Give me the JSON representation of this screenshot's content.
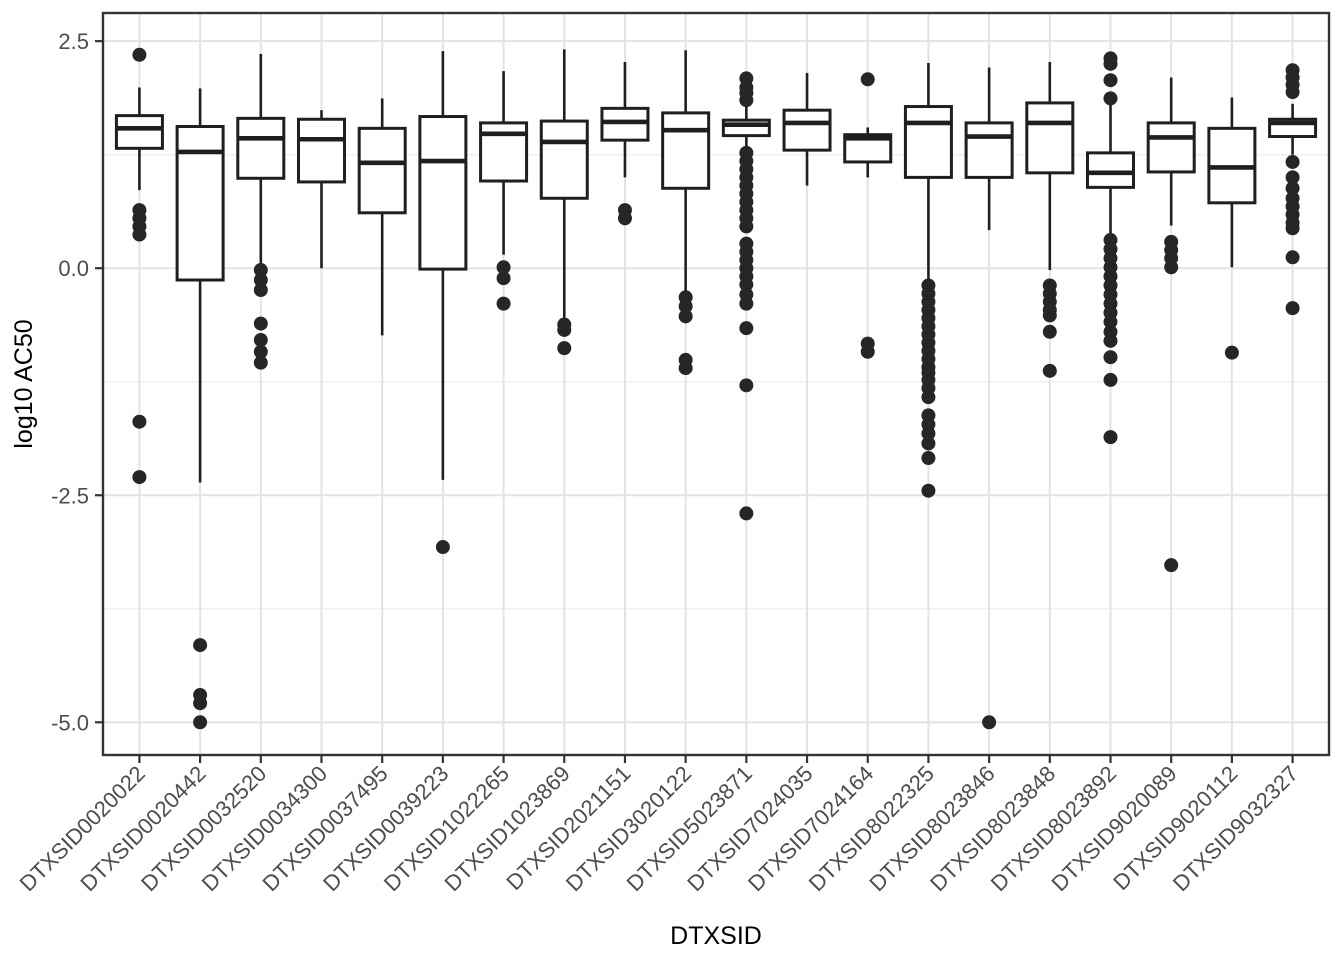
{
  "chart_data": {
    "type": "boxplot",
    "title": "",
    "xlabel": "DTXSID",
    "ylabel": "log10 AC50",
    "ylim": [
      -5.36,
      2.81
    ],
    "grid": true,
    "legend": "none",
    "y_ticks": [
      {
        "value": 2.5,
        "label": "2.5"
      },
      {
        "value": 0.0,
        "label": "0.0"
      },
      {
        "value": -2.5,
        "label": "-2.5"
      },
      {
        "value": -5.0,
        "label": "-5.0"
      }
    ],
    "y_minor_ticks": [
      1.25,
      -1.25,
      -3.75
    ],
    "categories": [
      "DTXSID0020022",
      "DTXSID0020442",
      "DTXSID0032520",
      "DTXSID0034300",
      "DTXSID0037495",
      "DTXSID0039223",
      "DTXSID1022265",
      "DTXSID1023869",
      "DTXSID2021151",
      "DTXSID3020122",
      "DTXSID5023871",
      "DTXSID7024035",
      "DTXSID7024164",
      "DTXSID8022325",
      "DTXSID8023846",
      "DTXSID8023848",
      "DTXSID8023892",
      "DTXSID9020089",
      "DTXSID9020112",
      "DTXSID9032327"
    ],
    "boxes": [
      {
        "label": "DTXSID0020022",
        "whisker_low": 0.86,
        "q1": 1.32,
        "median": 1.54,
        "q3": 1.68,
        "whisker_high": 1.99,
        "outliers": [
          2.35,
          0.64,
          0.55,
          0.46,
          0.37,
          -1.69,
          -2.3
        ]
      },
      {
        "label": "DTXSID0020442",
        "whisker_low": -2.36,
        "q1": -0.13,
        "median": 1.28,
        "q3": 1.56,
        "whisker_high": 1.98,
        "outliers": [
          -4.15,
          -4.7,
          -4.79,
          -5.0
        ]
      },
      {
        "label": "DTXSID0032520",
        "whisker_low": 0.05,
        "q1": 0.99,
        "median": 1.43,
        "q3": 1.65,
        "whisker_high": 2.36,
        "outliers": [
          -0.02,
          -0.13,
          -0.24,
          -0.61,
          -0.79,
          -0.92,
          -1.04
        ]
      },
      {
        "label": "DTXSID0034300",
        "whisker_low": 0.0,
        "q1": 0.95,
        "median": 1.42,
        "q3": 1.64,
        "whisker_high": 1.74,
        "outliers": []
      },
      {
        "label": "DTXSID0037495",
        "whisker_low": -0.74,
        "q1": 0.61,
        "median": 1.16,
        "q3": 1.54,
        "whisker_high": 1.87,
        "outliers": []
      },
      {
        "label": "DTXSID0039223",
        "whisker_low": -2.33,
        "q1": -0.01,
        "median": 1.18,
        "q3": 1.67,
        "whisker_high": 2.39,
        "outliers": [
          -3.07
        ]
      },
      {
        "label": "DTXSID1022265",
        "whisker_low": 0.15,
        "q1": 0.96,
        "median": 1.48,
        "q3": 1.6,
        "whisker_high": 2.17,
        "outliers": [
          0.01,
          -0.11,
          -0.39
        ]
      },
      {
        "label": "DTXSID1023869",
        "whisker_low": -0.57,
        "q1": 0.77,
        "median": 1.39,
        "q3": 1.62,
        "whisker_high": 2.41,
        "outliers": [
          -0.62,
          -0.68,
          -0.88
        ]
      },
      {
        "label": "DTXSID2021151",
        "whisker_low": 1.0,
        "q1": 1.41,
        "median": 1.61,
        "q3": 1.76,
        "whisker_high": 2.27,
        "outliers": [
          0.64,
          0.55
        ]
      },
      {
        "label": "DTXSID3020122",
        "whisker_low": -0.28,
        "q1": 0.88,
        "median": 1.52,
        "q3": 1.71,
        "whisker_high": 2.4,
        "outliers": [
          -0.32,
          -0.42,
          -0.53,
          -1.01,
          -1.1
        ]
      },
      {
        "label": "DTXSID5023871",
        "whisker_low": 1.28,
        "q1": 1.46,
        "median": 1.58,
        "q3": 1.63,
        "whisker_high": 1.83,
        "outliers": [
          2.09,
          1.99,
          1.93,
          1.85,
          1.27,
          1.18,
          1.09,
          1.0,
          0.91,
          0.82,
          0.73,
          0.64,
          0.55,
          0.46,
          0.27,
          0.18,
          0.09,
          0.0,
          -0.09,
          -0.18,
          -0.29,
          -0.39,
          -0.66,
          -1.29,
          -2.7
        ]
      },
      {
        "label": "DTXSID7024035",
        "whisker_low": 0.91,
        "q1": 1.3,
        "median": 1.6,
        "q3": 1.74,
        "whisker_high": 2.15,
        "outliers": []
      },
      {
        "label": "DTXSID7024164",
        "whisker_low": 1.0,
        "q1": 1.17,
        "median": 1.43,
        "q3": 1.47,
        "whisker_high": 1.55,
        "outliers": [
          2.08,
          -0.83,
          -0.92
        ]
      },
      {
        "label": "DTXSID8022325",
        "whisker_low": -0.17,
        "q1": 1.0,
        "median": 1.6,
        "q3": 1.78,
        "whisker_high": 2.26,
        "outliers": [
          -0.19,
          -0.28,
          -0.37,
          -0.46,
          -0.55,
          -0.64,
          -0.73,
          -0.82,
          -0.91,
          -1.0,
          -1.09,
          -1.15,
          -1.23,
          -1.32,
          -1.42,
          -1.62,
          -1.72,
          -1.82,
          -1.93,
          -2.09,
          -2.45
        ]
      },
      {
        "label": "DTXSID8023846",
        "whisker_low": 0.42,
        "q1": 1.0,
        "median": 1.45,
        "q3": 1.6,
        "whisker_high": 2.21,
        "outliers": [
          -5.0
        ]
      },
      {
        "label": "DTXSID8023848",
        "whisker_low": -0.02,
        "q1": 1.05,
        "median": 1.6,
        "q3": 1.82,
        "whisker_high": 2.27,
        "outliers": [
          -0.19,
          -0.28,
          -0.37,
          -0.46,
          -0.52,
          -0.7,
          -1.13
        ]
      },
      {
        "label": "DTXSID8023892",
        "whisker_low": 0.33,
        "q1": 0.89,
        "median": 1.05,
        "q3": 1.27,
        "whisker_high": 1.81,
        "outliers": [
          2.31,
          2.25,
          2.07,
          1.87,
          0.31,
          0.21,
          0.11,
          0.01,
          -0.09,
          -0.19,
          -0.29,
          -0.39,
          -0.49,
          -0.59,
          -0.7,
          -0.8,
          -0.98,
          -1.23,
          -1.86
        ]
      },
      {
        "label": "DTXSID9020089",
        "whisker_low": 0.47,
        "q1": 1.06,
        "median": 1.44,
        "q3": 1.6,
        "whisker_high": 2.1,
        "outliers": [
          0.29,
          0.2,
          0.11,
          0.01,
          -3.27
        ]
      },
      {
        "label": "DTXSID9020112",
        "whisker_low": 0.01,
        "q1": 0.72,
        "median": 1.11,
        "q3": 1.54,
        "whisker_high": 1.88,
        "outliers": [
          -0.93
        ]
      },
      {
        "label": "DTXSID9032327",
        "whisker_low": 1.25,
        "q1": 1.45,
        "median": 1.6,
        "q3": 1.64,
        "whisker_high": 1.81,
        "outliers": [
          2.18,
          2.1,
          2.02,
          1.94,
          1.17,
          1.0,
          0.88,
          0.77,
          0.68,
          0.59,
          0.5,
          0.44,
          0.12,
          -0.44
        ]
      }
    ],
    "colors": {
      "box_stroke": "#1f1f1f",
      "box_fill": "#ffffff",
      "outlier_fill": "#262626",
      "panel_border": "#333333",
      "grid_major": "#e3e3e3",
      "grid_minor": "#eeeeee",
      "tick_mark": "#333333",
      "tick_text": "#4d4d4d",
      "axis_title": "#000000",
      "background": "#ffffff"
    }
  }
}
